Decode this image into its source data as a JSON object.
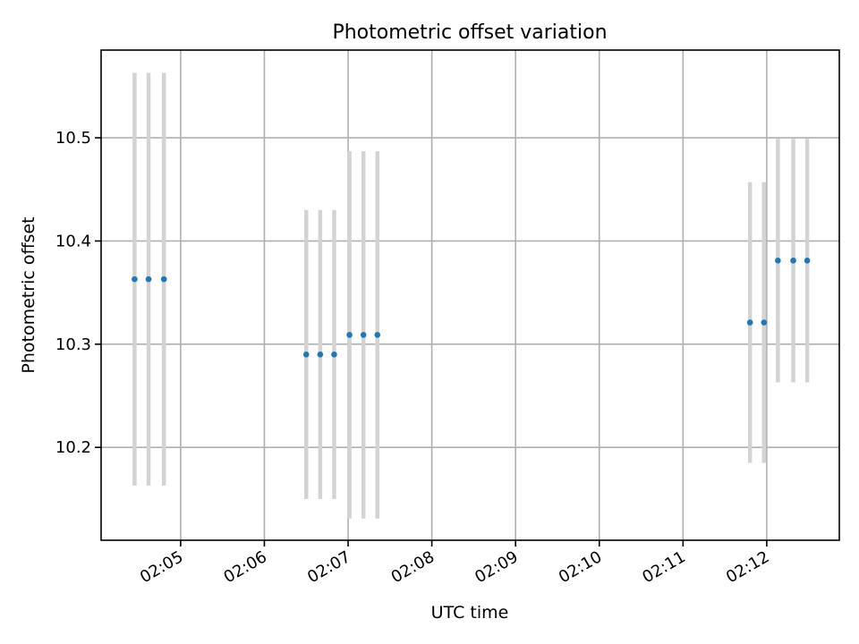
{
  "chart_data": {
    "type": "scatter",
    "title": "Photometric offset variation",
    "xlabel": "UTC time",
    "ylabel": "Photometric offset",
    "xlim": [
      "02:04:03",
      "02:12:52"
    ],
    "ylim": [
      10.11,
      10.585
    ],
    "x_ticks": [
      "02:05",
      "02:06",
      "02:07",
      "02:08",
      "02:09",
      "02:10",
      "02:11",
      "02:12"
    ],
    "y_ticks": [
      10.2,
      10.3,
      10.4,
      10.5
    ],
    "grid": true,
    "legend": "none",
    "marker_color": "#1f77b4",
    "errorbar_color": "#d3d3d3",
    "points": [
      {
        "t": "02:04:27",
        "y": 10.363,
        "err": 0.2
      },
      {
        "t": "02:04:37",
        "y": 10.363,
        "err": 0.2
      },
      {
        "t": "02:04:48",
        "y": 10.363,
        "err": 0.2
      },
      {
        "t": "02:06:30",
        "y": 10.29,
        "err": 0.14
      },
      {
        "t": "02:06:40",
        "y": 10.29,
        "err": 0.14
      },
      {
        "t": "02:06:50",
        "y": 10.29,
        "err": 0.14
      },
      {
        "t": "02:07:01",
        "y": 10.309,
        "err": 0.178
      },
      {
        "t": "02:07:11",
        "y": 10.309,
        "err": 0.178
      },
      {
        "t": "02:07:21",
        "y": 10.309,
        "err": 0.178
      },
      {
        "t": "02:11:48",
        "y": 10.321,
        "err": 0.136
      },
      {
        "t": "02:11:58",
        "y": 10.321,
        "err": 0.136
      },
      {
        "t": "02:12:08",
        "y": 10.381,
        "err": 0.118
      },
      {
        "t": "02:12:19",
        "y": 10.381,
        "err": 0.118
      },
      {
        "t": "02:12:29",
        "y": 10.381,
        "err": 0.118
      }
    ]
  }
}
